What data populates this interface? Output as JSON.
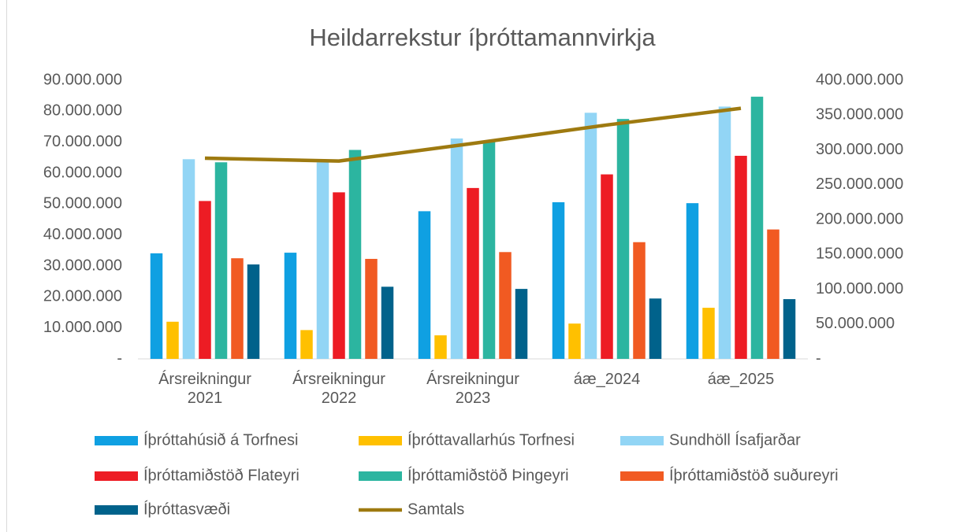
{
  "chart_data": {
    "type": "bar",
    "title": "Heildarrekstur íþróttamannvirkja",
    "categories": [
      "Ársreikningur 2021",
      "Ársreikningur 2022",
      "Ársreikningur 2023",
      "áæ_2024",
      "áæ_2025"
    ],
    "series": [
      {
        "name": "Íþróttahúsið á Torfnesi",
        "color": "#0fa0e2",
        "values": [
          34100000,
          34300000,
          47700000,
          50600000,
          50300000
        ]
      },
      {
        "name": "Íþróttavallarhús Torfnesi",
        "color": "#ffc000",
        "values": [
          12000000,
          9300000,
          7600000,
          11400000,
          16500000
        ]
      },
      {
        "name": "Sundhöll Ísafjarðar",
        "color": "#92d5f5",
        "values": [
          64500000,
          63500000,
          71200000,
          79500000,
          81500000
        ]
      },
      {
        "name": "Íþróttamiðstöð Flateyri",
        "color": "#ed1c24",
        "values": [
          51000000,
          53800000,
          55200000,
          59600000,
          65600000
        ]
      },
      {
        "name": "Íþróttamiðstöð Þingeyri",
        "color": "#2cb5a0",
        "values": [
          63500000,
          67500000,
          70500000,
          77500000,
          84700000
        ]
      },
      {
        "name": "Íþróttamiðstöð suðureyri",
        "color": "#f15a22",
        "values": [
          32500000,
          32300000,
          34500000,
          37700000,
          41800000
        ]
      },
      {
        "name": "Íþróttasvæði",
        "color": "#00628b",
        "values": [
          30500000,
          23300000,
          22600000,
          19500000,
          19300000
        ]
      },
      {
        "name": "Samtals",
        "color": "#9e7a10",
        "type": "line",
        "axis": "y2",
        "values": [
          288100000,
          284000000,
          309300000,
          335800000,
          359700000
        ]
      }
    ],
    "ylim": [
      0,
      90000000
    ],
    "yticks": [
      {
        "value": 0,
        "label": "-"
      },
      {
        "value": 10000000,
        "label": "10.000.000"
      },
      {
        "value": 20000000,
        "label": "20.000.000"
      },
      {
        "value": 30000000,
        "label": "30.000.000"
      },
      {
        "value": 40000000,
        "label": "40.000.000"
      },
      {
        "value": 50000000,
        "label": "50.000.000"
      },
      {
        "value": 60000000,
        "label": "60.000.000"
      },
      {
        "value": 70000000,
        "label": "70.000.000"
      },
      {
        "value": 80000000,
        "label": "80.000.000"
      },
      {
        "value": 90000000,
        "label": "90.000.000"
      }
    ],
    "y2lim": [
      0,
      400000000
    ],
    "y2ticks": [
      {
        "value": 0,
        "label": "-"
      },
      {
        "value": 50000000,
        "label": "50.000.000"
      },
      {
        "value": 100000000,
        "label": "100.000.000"
      },
      {
        "value": 150000000,
        "label": "150.000.000"
      },
      {
        "value": 200000000,
        "label": "200.000.000"
      },
      {
        "value": 250000000,
        "label": "250.000.000"
      },
      {
        "value": 300000000,
        "label": "300.000.000"
      },
      {
        "value": 350000000,
        "label": "350.000.000"
      },
      {
        "value": 400000000,
        "label": "400.000.000"
      }
    ],
    "legend": "bottom"
  }
}
